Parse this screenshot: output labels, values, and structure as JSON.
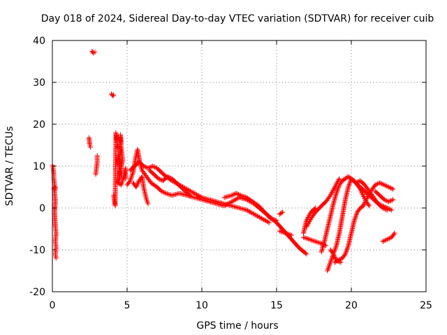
{
  "chart_data": {
    "type": "scatter",
    "title": "Day 018 of 2024, Sidereal Day-to-day VTEC variation (SDTVAR) for receiver cuib",
    "xlabel": "GPS time / hours",
    "ylabel": "SDTVAR / TECUs",
    "xlim": [
      0,
      25
    ],
    "ylim": [
      -20,
      40
    ],
    "xticks": [
      0,
      5,
      10,
      15,
      20,
      25
    ],
    "yticks": [
      -20,
      -10,
      0,
      10,
      20,
      30,
      40
    ],
    "xtick_labels": [
      "0",
      "5",
      "10",
      "15",
      "20",
      "25"
    ],
    "ytick_labels": [
      "-20",
      "-10",
      "0",
      "10",
      "20",
      "30",
      "40"
    ],
    "grid": true,
    "marker": "+",
    "marker_color": "#ff0000",
    "series": [
      {
        "name": "SDTVAR",
        "segments": [
          [
            [
              0.0,
              10.2
            ],
            [
              0.05,
              9.5
            ],
            [
              0.1,
              8.0
            ],
            [
              0.1,
              7.0
            ],
            [
              0.15,
              5.5
            ],
            [
              0.1,
              4.5
            ],
            [
              0.2,
              5.0
            ],
            [
              0.15,
              3.5
            ],
            [
              0.2,
              1.5
            ],
            [
              0.15,
              -1.0
            ],
            [
              0.2,
              -4.5
            ],
            [
              0.25,
              -6.0
            ],
            [
              0.2,
              -8.0
            ],
            [
              0.25,
              -9.5
            ],
            [
              0.2,
              -11.0
            ],
            [
              0.25,
              -12.0
            ]
          ],
          [
            [
              2.45,
              16.8
            ],
            [
              2.5,
              15.2
            ],
            [
              2.55,
              14.5
            ]
          ],
          [
            [
              2.65,
              37.4
            ],
            [
              2.75,
              37.0
            ],
            [
              2.85,
              37.2
            ]
          ],
          [
            [
              2.9,
              8.0
            ],
            [
              2.95,
              9.5
            ],
            [
              3.0,
              11.0
            ],
            [
              3.0,
              12.5
            ]
          ],
          [
            [
              3.95,
              27.2
            ],
            [
              4.05,
              26.8
            ],
            [
              4.1,
              27.0
            ]
          ],
          [
            [
              4.1,
              3.0
            ],
            [
              4.15,
              1.5
            ],
            [
              4.2,
              0.5
            ],
            [
              4.25,
              18.0
            ],
            [
              4.3,
              16.5
            ],
            [
              4.35,
              15.0
            ],
            [
              4.4,
              14.0
            ],
            [
              4.4,
              12.0
            ],
            [
              4.45,
              10.0
            ],
            [
              4.5,
              8.5
            ],
            [
              4.5,
              7.0
            ],
            [
              4.55,
              17.5
            ],
            [
              4.6,
              16.0
            ],
            [
              4.6,
              14.5
            ],
            [
              4.65,
              13.0
            ],
            [
              4.7,
              11.5
            ],
            [
              4.4,
              6.0
            ],
            [
              4.6,
              5.5
            ],
            [
              4.7,
              6.5
            ],
            [
              4.8,
              8.0
            ],
            [
              4.9,
              9.5
            ],
            [
              4.9,
              7.0
            ]
          ],
          [
            [
              5.0,
              5.5
            ],
            [
              5.2,
              6.5
            ],
            [
              5.4,
              8.5
            ],
            [
              5.5,
              10.5
            ],
            [
              5.6,
              12.5
            ],
            [
              5.7,
              14.0
            ],
            [
              5.8,
              12.0
            ],
            [
              5.9,
              10.0
            ],
            [
              6.0,
              9.0
            ],
            [
              6.2,
              8.0
            ],
            [
              6.4,
              7.0
            ],
            [
              6.6,
              6.0
            ],
            [
              6.8,
              5.5
            ],
            [
              7.0,
              5.0
            ],
            [
              7.3,
              4.0
            ],
            [
              7.6,
              3.5
            ],
            [
              8.0,
              3.0
            ],
            [
              8.5,
              3.5
            ],
            [
              9.0,
              3.0
            ],
            [
              9.5,
              2.5
            ],
            [
              10.0,
              2.0
            ],
            [
              10.5,
              1.5
            ],
            [
              11.0,
              1.0
            ],
            [
              11.5,
              0.5
            ],
            [
              12.0,
              1.5
            ],
            [
              12.5,
              2.5
            ],
            [
              13.0,
              2.0
            ],
            [
              13.5,
              1.0
            ],
            [
              14.0,
              -0.5
            ],
            [
              14.5,
              -2.0
            ],
            [
              15.0,
              -3.5
            ],
            [
              15.5,
              -5.5
            ],
            [
              16.0,
              -7.5
            ],
            [
              16.5,
              -9.5
            ],
            [
              17.0,
              -11.0
            ]
          ],
          [
            [
              5.2,
              9.0
            ],
            [
              5.5,
              10.0
            ],
            [
              5.8,
              11.0
            ],
            [
              6.1,
              10.0
            ],
            [
              6.4,
              9.5
            ],
            [
              6.7,
              10.0
            ],
            [
              7.0,
              9.5
            ],
            [
              7.3,
              8.5
            ],
            [
              7.6,
              7.5
            ],
            [
              8.0,
              6.5
            ],
            [
              8.5,
              5.5
            ],
            [
              9.0,
              4.5
            ],
            [
              9.5,
              3.5
            ],
            [
              10.0,
              2.5
            ],
            [
              10.5,
              2.0
            ],
            [
              11.0,
              1.5
            ],
            [
              11.5,
              1.0
            ],
            [
              12.0,
              0.5
            ],
            [
              12.5,
              0.0
            ],
            [
              13.0,
              -0.5
            ],
            [
              13.5,
              -1.5
            ],
            [
              14.0,
              -2.5
            ],
            [
              14.5,
              -3.5
            ]
          ],
          [
            [
              5.4,
              6.0
            ],
            [
              5.6,
              5.0
            ],
            [
              5.8,
              6.5
            ],
            [
              6.0,
              7.5
            ],
            [
              6.1,
              5.0
            ],
            [
              6.2,
              3.5
            ],
            [
              6.3,
              2.0
            ],
            [
              6.4,
              1.0
            ]
          ],
          [
            [
              6.5,
              9.0
            ],
            [
              6.8,
              8.0
            ],
            [
              7.1,
              7.0
            ],
            [
              7.4,
              6.5
            ],
            [
              7.7,
              7.5
            ],
            [
              8.0,
              7.0
            ],
            [
              8.3,
              6.0
            ],
            [
              8.6,
              5.0
            ],
            [
              8.9,
              4.0
            ],
            [
              9.2,
              3.0
            ]
          ],
          [
            [
              11.5,
              2.5
            ],
            [
              12.0,
              3.0
            ],
            [
              12.3,
              3.5
            ],
            [
              12.6,
              3.0
            ],
            [
              13.0,
              2.5
            ],
            [
              13.4,
              1.5
            ],
            [
              13.8,
              0.5
            ],
            [
              14.2,
              -1.0
            ],
            [
              14.6,
              -2.5
            ],
            [
              15.0,
              -3.0
            ]
          ],
          [
            [
              15.2,
              -1.5
            ],
            [
              15.4,
              -1.0
            ]
          ],
          [
            [
              15.2,
              -5.5
            ],
            [
              15.6,
              -6.0
            ],
            [
              16.0,
              -6.5
            ]
          ],
          [
            [
              16.8,
              -7.0
            ],
            [
              17.2,
              -7.5
            ],
            [
              17.6,
              -8.0
            ],
            [
              18.0,
              -8.5
            ],
            [
              18.3,
              -9.0
            ]
          ],
          [
            [
              18.4,
              -15.0
            ],
            [
              18.6,
              -13.0
            ],
            [
              18.8,
              -11.0
            ],
            [
              19.0,
              -9.0
            ],
            [
              19.2,
              -6.0
            ],
            [
              19.4,
              -2.0
            ],
            [
              19.6,
              2.0
            ],
            [
              19.8,
              5.0
            ],
            [
              20.0,
              7.0
            ],
            [
              20.2,
              6.5
            ],
            [
              20.4,
              5.5
            ],
            [
              20.6,
              4.5
            ],
            [
              20.8,
              3.0
            ],
            [
              21.0,
              1.5
            ],
            [
              21.2,
              0.5
            ]
          ],
          [
            [
              18.0,
              -10.5
            ],
            [
              18.2,
              -8.0
            ],
            [
              18.4,
              -5.0
            ],
            [
              18.6,
              -2.0
            ],
            [
              18.8,
              1.0
            ],
            [
              19.0,
              3.5
            ],
            [
              19.2,
              5.5
            ],
            [
              19.4,
              6.5
            ],
            [
              19.6,
              7.0
            ],
            [
              19.8,
              7.5
            ],
            [
              20.0,
              7.0
            ],
            [
              20.3,
              6.0
            ],
            [
              20.6,
              5.0
            ],
            [
              20.9,
              4.0
            ],
            [
              21.2,
              3.0
            ],
            [
              21.5,
              2.0
            ],
            [
              21.8,
              1.0
            ],
            [
              22.1,
              0.0
            ],
            [
              22.4,
              -0.5
            ]
          ],
          [
            [
              17.0,
              -4.5
            ],
            [
              17.3,
              -2.5
            ],
            [
              17.6,
              -1.0
            ],
            [
              18.0,
              0.5
            ],
            [
              18.3,
              1.5
            ],
            [
              18.6,
              3.0
            ],
            [
              18.9,
              5.0
            ],
            [
              19.2,
              7.0
            ]
          ],
          [
            [
              17.6,
              0.0
            ],
            [
              17.3,
              -1.0
            ],
            [
              17.0,
              -3.0
            ],
            [
              16.8,
              -6.0
            ]
          ],
          [
            [
              18.9,
              -13.0
            ],
            [
              19.1,
              -12.5
            ],
            [
              19.4,
              -12.0
            ],
            [
              19.6,
              -11.0
            ],
            [
              19.8,
              -9.0
            ],
            [
              20.0,
              -6.0
            ],
            [
              20.2,
              -3.0
            ],
            [
              20.4,
              -1.0
            ],
            [
              20.6,
              0.0
            ],
            [
              20.8,
              0.5
            ],
            [
              21.0,
              2.0
            ],
            [
              21.3,
              4.0
            ],
            [
              21.6,
              5.5
            ],
            [
              21.9,
              6.0
            ],
            [
              22.2,
              5.5
            ],
            [
              22.5,
              5.0
            ],
            [
              22.8,
              4.5
            ]
          ],
          [
            [
              18.6,
              -10.0
            ],
            [
              18.8,
              -11.0
            ],
            [
              19.0,
              -12.5
            ],
            [
              19.3,
              -13.0
            ]
          ],
          [
            [
              20.3,
              6.0
            ],
            [
              20.6,
              6.5
            ],
            [
              20.9,
              5.5
            ],
            [
              21.2,
              4.0
            ],
            [
              21.5,
              2.5
            ],
            [
              21.8,
              1.0
            ],
            [
              22.1,
              0.5
            ],
            [
              22.4,
              0.0
            ],
            [
              22.7,
              -0.5
            ]
          ],
          [
            [
              21.6,
              4.0
            ],
            [
              21.9,
              3.0
            ],
            [
              22.2,
              2.0
            ],
            [
              22.5,
              1.5
            ],
            [
              22.8,
              2.0
            ]
          ],
          [
            [
              22.1,
              -8.0
            ],
            [
              22.4,
              -7.5
            ],
            [
              22.7,
              -7.0
            ],
            [
              22.9,
              -6.0
            ]
          ]
        ]
      }
    ]
  }
}
